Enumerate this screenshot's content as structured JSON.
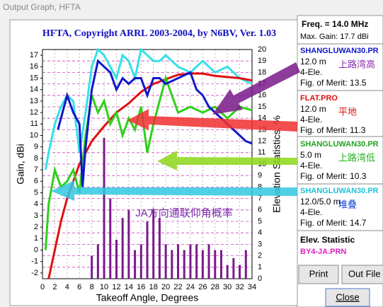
{
  "window": {
    "title": "Output Graph, HFTA"
  },
  "chart_data": {
    "type": "line",
    "title": "HFTA, Copyright ARRL 2003-2004, by N6BV, Ver. 1.03",
    "x_label": "Takeoff Angle, Degrees",
    "y_label": "Gain, dBi",
    "y2_label": "Elevation Statistics, %",
    "annotation": "JA方向通联仰角概率",
    "xlim": [
      0,
      34
    ],
    "xticks": [
      0,
      2,
      4,
      6,
      8,
      10,
      12,
      14,
      16,
      18,
      20,
      22,
      24,
      26,
      28,
      30,
      32,
      34
    ],
    "ylim": [
      -2.5,
      17.5
    ],
    "yticks": [
      -2,
      -1,
      0,
      1,
      2,
      3,
      4,
      5,
      6,
      7,
      8,
      9,
      10,
      11,
      12,
      13,
      14,
      15,
      16,
      17
    ],
    "y2lim": [
      0,
      20
    ],
    "y2ticks": [
      0,
      1,
      2,
      3,
      4,
      5,
      6,
      7,
      8,
      9,
      10,
      11,
      12,
      13,
      14,
      15,
      16,
      17,
      18,
      19,
      20
    ],
    "grid": true,
    "histogram": {
      "axis": "y2",
      "color": "#7a1a8a",
      "x": [
        8,
        9,
        10,
        11,
        12,
        13,
        14,
        15,
        16,
        17,
        18,
        19,
        20,
        21,
        22,
        23,
        24,
        25,
        26,
        27,
        28,
        29,
        30,
        31,
        32,
        33
      ],
      "values": [
        2,
        3,
        12.3,
        7,
        3.4,
        5.3,
        6,
        2.5,
        3,
        5,
        6,
        5.3,
        3,
        2.5,
        3,
        2.5,
        3,
        3,
        2.5,
        3,
        2.5,
        2.5,
        1.2,
        1.8,
        1.2,
        2.5
      ]
    },
    "series": [
      {
        "color": "#36e0e8",
        "x": [
          0.5,
          1,
          2,
          3,
          4,
          5,
          6,
          7,
          8,
          9,
          10,
          11,
          12,
          13,
          14,
          15,
          16,
          17,
          18,
          19,
          20,
          22,
          24,
          26,
          28,
          30,
          32,
          34
        ],
        "values": [
          7,
          8.5,
          11,
          12.5,
          13.5,
          13,
          8.5,
          12,
          16,
          17.5,
          17,
          16,
          15,
          17,
          16.5,
          15,
          17.5,
          17,
          16.5,
          16.5,
          17,
          16,
          15.5,
          16.5,
          15.5,
          16,
          15,
          14.5
        ]
      },
      {
        "color": "#e01010",
        "x": [
          1,
          2,
          3,
          4,
          5,
          6,
          8,
          10,
          12,
          14,
          16,
          18,
          20,
          22,
          24,
          26,
          28,
          30,
          32,
          34
        ],
        "values": [
          -2.5,
          0,
          2.5,
          4.5,
          6,
          7.5,
          9.5,
          10.8,
          12,
          12.8,
          13.8,
          14.5,
          14.9,
          15.3,
          15.4,
          15.4,
          15.2,
          15.1,
          15,
          14.8
        ]
      },
      {
        "color": "#2ed01a",
        "x": [
          0.5,
          1,
          2,
          3,
          4,
          5,
          6,
          7,
          8,
          9,
          10,
          11,
          12,
          13,
          14,
          15,
          16,
          17,
          18,
          19,
          20,
          22,
          24,
          26,
          28,
          30,
          32,
          34
        ],
        "values": [
          0,
          4,
          7,
          5.5,
          6,
          7,
          5,
          10,
          13.5,
          12,
          13,
          11,
          12,
          10,
          11.5,
          10.5,
          12.5,
          8.5,
          11,
          13,
          15,
          12,
          12.5,
          12,
          12.5,
          11.5,
          12.5,
          12.2
        ]
      },
      {
        "color": "#1018c8",
        "x": [
          2.5,
          3,
          4,
          5,
          6,
          6.5,
          7,
          8,
          9,
          10,
          11,
          12,
          13,
          14,
          15,
          16,
          17,
          18,
          19,
          20,
          22,
          24,
          25,
          26,
          27,
          28,
          29,
          30,
          31,
          32,
          33,
          34
        ],
        "values": [
          10.5,
          11.5,
          13.5,
          12,
          11,
          5.5,
          9,
          14,
          16.5,
          16,
          15.5,
          14,
          15,
          14.5,
          15,
          15,
          13.5,
          15,
          15,
          14.5,
          15,
          15.5,
          14,
          13.5,
          12.5,
          12,
          11.5,
          11,
          10.5,
          10,
          9.5,
          9.3
        ]
      }
    ]
  },
  "panel": {
    "freq": "Freq. = 14.0 MHz",
    "max_gain": "Max. Gain: 17.7 dBi",
    "entries": [
      {
        "name": "SHANGLUWAN30.PR",
        "height": "12.0 m",
        "ant": "4-Ele.",
        "merit": "Fig. of Merit: 13.5",
        "note": "上路湾高"
      },
      {
        "name": "FLAT.PRO",
        "height": "12.0 m",
        "ant": "4-Ele.",
        "merit": "Fig. of Merit: 11.3",
        "note": "平地"
      },
      {
        "name": "SHANGLUWAN30.PR",
        "height": "5.0 m",
        "ant": "4-Ele.",
        "merit": "Fig. of Merit: 10.3",
        "note": "上路湾低"
      },
      {
        "name": "SHANGLUWAN30.PR",
        "height": "12.0/5.0 m",
        "ant": "4-Ele.",
        "merit": "Fig. of Merit: 14.7",
        "note": "堆叠"
      }
    ],
    "elev_title": "Elev. Statistic",
    "elev_file": "BY4-JA.PRN"
  },
  "buttons": {
    "print": "Print",
    "outfile": "Out File",
    "close": "Close"
  }
}
